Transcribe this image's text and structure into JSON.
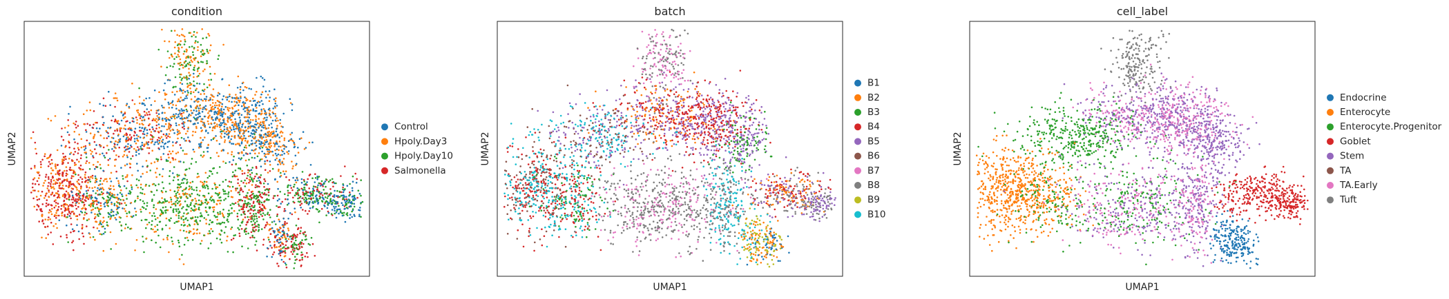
{
  "chart_data": [
    {
      "type": "scatter",
      "title": "condition",
      "xlabel": "UMAP1",
      "ylabel": "UMAP2",
      "grid": false,
      "legend_position": "right",
      "series": [
        {
          "name": "Control",
          "color": "#1f77b4"
        },
        {
          "name": "Hpoly.Day3",
          "color": "#ff7f0e"
        },
        {
          "name": "Hpoly.Day10",
          "color": "#2ca02c"
        },
        {
          "name": "Salmonella",
          "color": "#d62728"
        }
      ]
    },
    {
      "type": "scatter",
      "title": "batch",
      "xlabel": "UMAP1",
      "ylabel": "UMAP2",
      "grid": false,
      "legend_position": "right",
      "series": [
        {
          "name": "B1",
          "color": "#1f77b4"
        },
        {
          "name": "B2",
          "color": "#ff7f0e"
        },
        {
          "name": "B3",
          "color": "#2ca02c"
        },
        {
          "name": "B4",
          "color": "#d62728"
        },
        {
          "name": "B5",
          "color": "#9467bd"
        },
        {
          "name": "B6",
          "color": "#8c564b"
        },
        {
          "name": "B7",
          "color": "#e377c2"
        },
        {
          "name": "B8",
          "color": "#7f7f7f"
        },
        {
          "name": "B9",
          "color": "#bcbd22"
        },
        {
          "name": "B10",
          "color": "#17becf"
        }
      ]
    },
    {
      "type": "scatter",
      "title": "cell_label",
      "xlabel": "UMAP1",
      "ylabel": "UMAP2",
      "grid": false,
      "legend_position": "right",
      "series": [
        {
          "name": "Endocrine",
          "color": "#1f77b4"
        },
        {
          "name": "Enterocyte",
          "color": "#ff7f0e"
        },
        {
          "name": "Enterocyte.Progenitor",
          "color": "#2ca02c"
        },
        {
          "name": "Goblet",
          "color": "#d62728"
        },
        {
          "name": "Stem",
          "color": "#9467bd"
        },
        {
          "name": "TA",
          "color": "#8c564b"
        },
        {
          "name": "TA.Early",
          "color": "#e377c2"
        },
        {
          "name": "Tuft",
          "color": "#7f7f7f"
        }
      ]
    }
  ]
}
